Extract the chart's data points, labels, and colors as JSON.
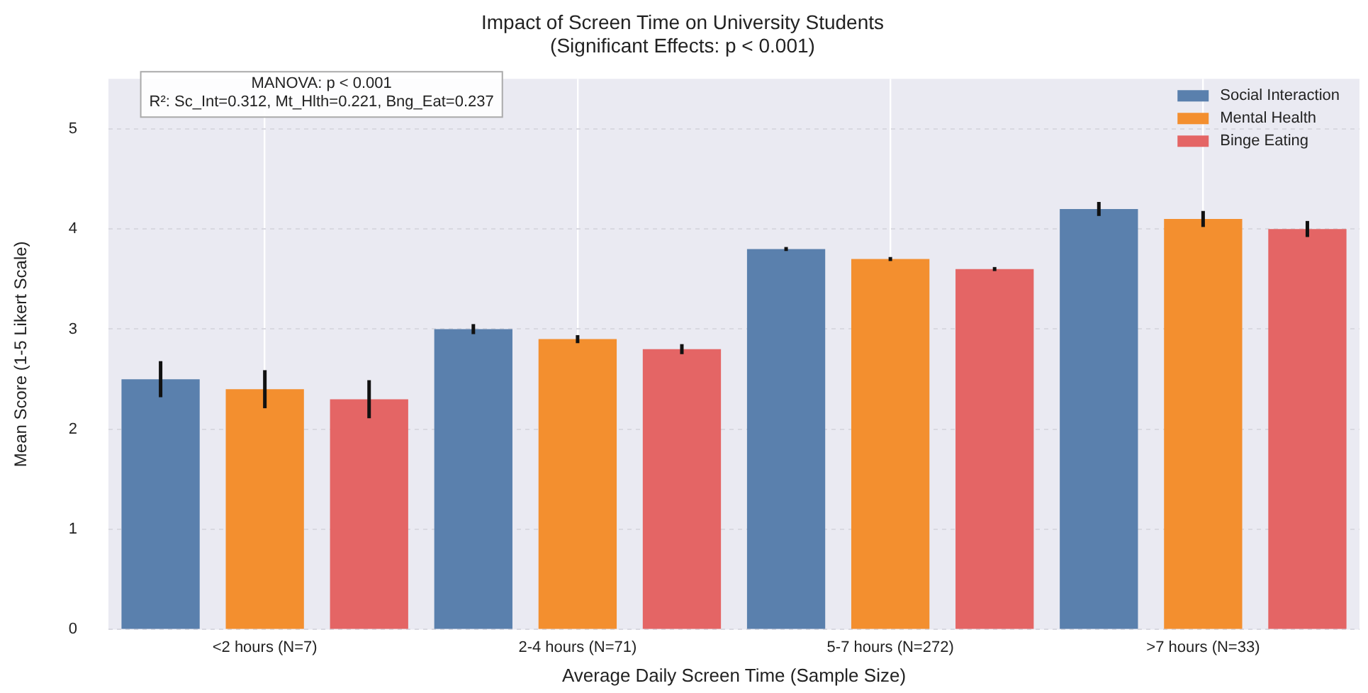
{
  "chart_data": {
    "type": "bar",
    "title": "Impact of Screen Time on University Students",
    "subtitle": "(Significant Effects: p < 0.001)",
    "xlabel": "Average Daily Screen Time (Sample Size)",
    "ylabel": "Mean Score (1-5 Likert Scale)",
    "categories": [
      "<2 hours (N=7)",
      "2-4 hours (N=71)",
      "5-7 hours (N=272)",
      ">7 hours (N=33)"
    ],
    "series": [
      {
        "name": "Social Interaction",
        "color": "#5a80ad",
        "values": [
          2.5,
          3.0,
          3.8,
          4.2
        ],
        "errors": [
          0.18,
          0.05,
          0.02,
          0.07
        ]
      },
      {
        "name": "Mental Health",
        "color": "#f38f2f",
        "values": [
          2.4,
          2.9,
          3.7,
          4.1
        ],
        "errors": [
          0.19,
          0.04,
          0.02,
          0.08
        ]
      },
      {
        "name": "Binge Eating",
        "color": "#e46565",
        "values": [
          2.3,
          2.8,
          3.6,
          4.0
        ],
        "errors": [
          0.19,
          0.05,
          0.02,
          0.08
        ]
      }
    ],
    "ylim": [
      0,
      5.5
    ],
    "yticks": [
      0,
      1,
      2,
      3,
      4,
      5
    ],
    "grid": true,
    "legend": "top right",
    "annotations": [
      "MANOVA: p < 0.001",
      "R²: Sc_Int=0.312, Mt_Hlth=0.221, Bng_Eat=0.237"
    ]
  }
}
